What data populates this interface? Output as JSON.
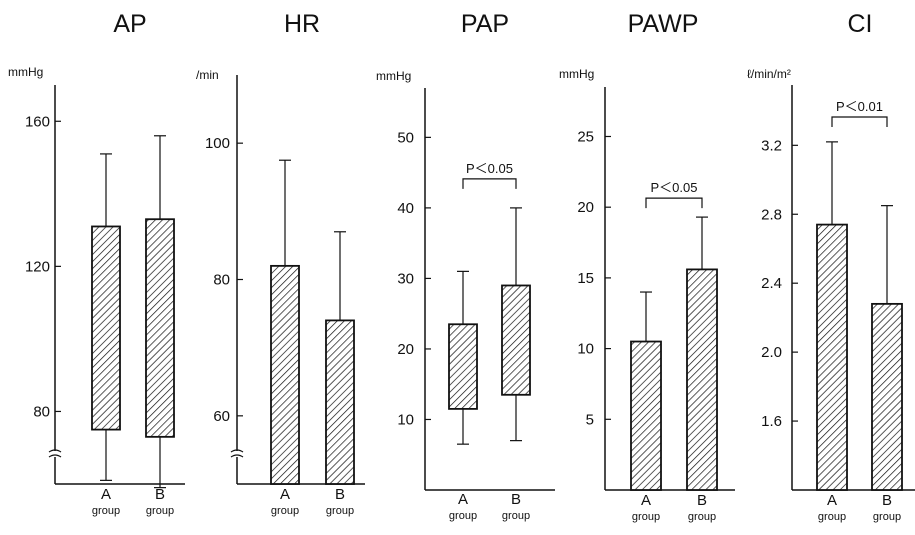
{
  "colors": {
    "ink": "#111111",
    "background": "#ffffff"
  },
  "chart_data": [
    {
      "type": "bar",
      "title": "AP",
      "ylabel": "mmHg",
      "ylim": [
        60,
        170
      ],
      "yticks": [
        80,
        120,
        160
      ],
      "axis_break": true,
      "categories": [
        {
          "letter": "A",
          "sub": "group"
        },
        {
          "letter": "B",
          "sub": "group"
        }
      ],
      "bars": [
        {
          "group": "A",
          "low": 75,
          "high": 131,
          "err_low": 61,
          "err_high": 151
        },
        {
          "group": "B",
          "low": 73,
          "high": 133,
          "err_low": 59,
          "err_high": 156
        }
      ],
      "significance": ""
    },
    {
      "type": "bar",
      "title": "HR",
      "ylabel": "/min",
      "ylim": [
        50,
        110
      ],
      "yticks": [
        60,
        80,
        100
      ],
      "axis_break": true,
      "categories": [
        {
          "letter": "A",
          "sub": "group"
        },
        {
          "letter": "B",
          "sub": "group"
        }
      ],
      "bars": [
        {
          "group": "A",
          "low": null,
          "high": 82,
          "err_low": null,
          "err_high": 97.5
        },
        {
          "group": "B",
          "low": null,
          "high": 74,
          "err_low": null,
          "err_high": 87
        }
      ],
      "significance": ""
    },
    {
      "type": "bar",
      "title": "PAP",
      "ylabel": "mmHg",
      "ylim": [
        0,
        57
      ],
      "yticks": [
        10,
        20,
        30,
        40,
        50
      ],
      "axis_break": false,
      "categories": [
        {
          "letter": "A",
          "sub": "group"
        },
        {
          "letter": "B",
          "sub": "group"
        }
      ],
      "bars": [
        {
          "group": "A",
          "low": 11.5,
          "high": 23.5,
          "err_low": 6.5,
          "err_high": 31
        },
        {
          "group": "B",
          "low": 13.5,
          "high": 29,
          "err_low": 7,
          "err_high": 40
        }
      ],
      "significance": "P＜0.05"
    },
    {
      "type": "bar",
      "title": "PAWP",
      "ylabel": "mmHg",
      "ylim": [
        0,
        28.5
      ],
      "yticks": [
        5,
        10,
        15,
        20,
        25
      ],
      "axis_break": false,
      "categories": [
        {
          "letter": "A",
          "sub": "group"
        },
        {
          "letter": "B",
          "sub": "group"
        }
      ],
      "bars": [
        {
          "group": "A",
          "low": null,
          "high": 10.5,
          "err_low": null,
          "err_high": 14
        },
        {
          "group": "B",
          "low": null,
          "high": 15.6,
          "err_low": null,
          "err_high": 19.3
        }
      ],
      "significance": "P＜0.05"
    },
    {
      "type": "bar",
      "title": "CI",
      "ylabel": "ℓ/min/m²",
      "ylim": [
        1.2,
        3.55
      ],
      "yticks": [
        "1.6",
        "2.0",
        "2.4",
        "2.8",
        "3.2"
      ],
      "axis_break": false,
      "categories": [
        {
          "letter": "A",
          "sub": "group"
        },
        {
          "letter": "B",
          "sub": "group"
        }
      ],
      "bars": [
        {
          "group": "A",
          "low": null,
          "high": 2.74,
          "err_low": null,
          "err_high": 3.22
        },
        {
          "group": "B",
          "low": null,
          "high": 2.28,
          "err_low": null,
          "err_high": 2.85
        }
      ],
      "significance": "P＜0.01"
    }
  ]
}
